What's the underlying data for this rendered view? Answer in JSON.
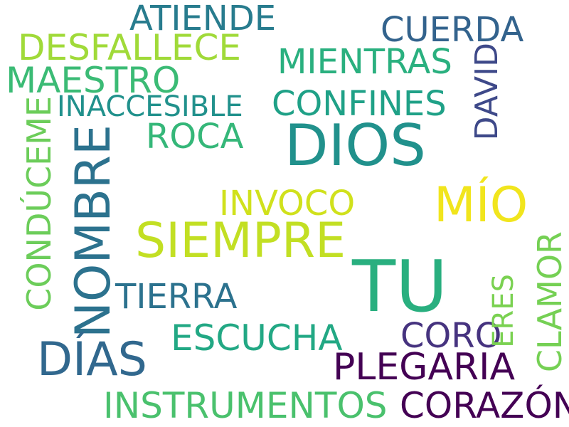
{
  "words": {
    "dios": {
      "text": "DIOS",
      "color": "#21918c"
    },
    "tu": {
      "text": "TU",
      "color": "#29af7f"
    },
    "siempre": {
      "text": "SIEMPRE",
      "color": "#c2df23"
    },
    "mio": {
      "text": "MÍO",
      "color": "#f1e51d"
    },
    "nombre": {
      "text": "NOMBRE",
      "color": "#2c728e"
    },
    "dias": {
      "text": "DÍAS",
      "color": "#31688e"
    },
    "coro": {
      "text": "CORO",
      "color": "#46337f"
    },
    "plegaria": {
      "text": "PLEGARIA",
      "color": "#440154"
    },
    "corazon": {
      "text": "CORAZÓN",
      "color": "#440154"
    },
    "instrumentos": {
      "text": "INSTRUMENTOS",
      "color": "#4ac16d"
    },
    "escucha": {
      "text": "ESCUCHA",
      "color": "#22a884"
    },
    "tierra": {
      "text": "TIERRA",
      "color": "#2c728e"
    },
    "invoco": {
      "text": "INVOCO",
      "color": "#d0e11c"
    },
    "roca": {
      "text": "ROCA",
      "color": "#35b779"
    },
    "confines": {
      "text": "CONFINES",
      "color": "#1fa187"
    },
    "inaccesible": {
      "text": "INACCESIBLE",
      "color": "#21918c"
    },
    "maestro": {
      "text": "MAESTRO",
      "color": "#3bbb75"
    },
    "desfallece": {
      "text": "DESFALLECE",
      "color": "#a0da39"
    },
    "atiende": {
      "text": "ATIENDE",
      "color": "#287c8e"
    },
    "mientras": {
      "text": "MIENTRAS",
      "color": "#2ab07f"
    },
    "cuerda": {
      "text": "CUERDA",
      "color": "#33638d"
    },
    "conduceme": {
      "text": "CONDÚCEME",
      "color": "#6ccd5a"
    },
    "david": {
      "text": "DAVID",
      "color": "#3e4989"
    },
    "clamor": {
      "text": "CLAMOR",
      "color": "#75d054"
    },
    "eres": {
      "text": "ERES",
      "color": "#7ad151"
    }
  }
}
